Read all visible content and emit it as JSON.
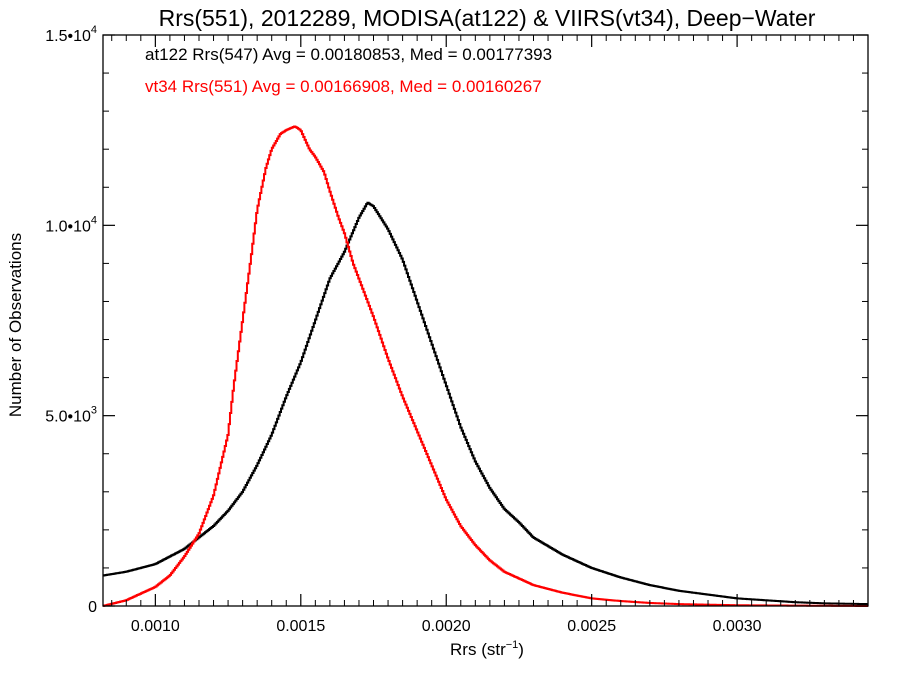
{
  "chart_data": {
    "type": "line",
    "title": "Rrs(551), 2012289, MODISA(at122) & VIIRS(vt34), Deep−Water",
    "xlabel": "Rrs (str⁻¹)",
    "ylabel": "Number of Observations",
    "xlim": [
      0.00082,
      0.00345
    ],
    "ylim": [
      0,
      15000
    ],
    "grid": false,
    "x_tick_values": [
      0.001,
      0.0015,
      0.002,
      0.0025,
      0.003
    ],
    "x_tick_labels": [
      "0.0010",
      "0.0015",
      "0.0020",
      "0.0025",
      "0.0030"
    ],
    "y_tick_values": [
      0,
      5000,
      10000,
      15000
    ],
    "y_tick_labels": [
      {
        "mant": "0",
        "exp": ""
      },
      {
        "mant": "5.0•10",
        "exp": "3"
      },
      {
        "mant": "1.0•10",
        "exp": "4"
      },
      {
        "mant": "1.5•10",
        "exp": "4"
      }
    ],
    "annotations": [
      {
        "text": "at122 Rrs(547) Avg = 0.00180853, Med = 0.00177393",
        "color": "#000000"
      },
      {
        "text": "vt34 Rrs(551) Avg = 0.00166908, Med = 0.00160267",
        "color": "#ff0000"
      }
    ],
    "series": [
      {
        "color": "#000000",
        "style": "histogram-step",
        "x": [
          0.00082,
          0.0009,
          0.001,
          0.0011,
          0.00115,
          0.0012,
          0.00125,
          0.0013,
          0.00135,
          0.0014,
          0.00145,
          0.0015,
          0.00155,
          0.0016,
          0.00165,
          0.0017,
          0.00173,
          0.00175,
          0.0018,
          0.00185,
          0.0019,
          0.00195,
          0.002,
          0.00205,
          0.0021,
          0.00215,
          0.0022,
          0.00225,
          0.0023,
          0.0024,
          0.0025,
          0.0026,
          0.0027,
          0.0028,
          0.0029,
          0.003,
          0.0031,
          0.0032,
          0.0033,
          0.00345
        ],
        "y": [
          800,
          900,
          1100,
          1500,
          1800,
          2100,
          2500,
          3000,
          3700,
          4500,
          5500,
          6400,
          7500,
          8600,
          9300,
          10200,
          10600,
          10500,
          9900,
          9100,
          8000,
          6900,
          5800,
          4700,
          3800,
          3100,
          2550,
          2200,
          1800,
          1350,
          1000,
          750,
          550,
          400,
          300,
          200,
          150,
          100,
          70,
          50
        ]
      },
      {
        "color": "#ff0000",
        "style": "histogram-step",
        "x": [
          0.00082,
          0.0009,
          0.001,
          0.00105,
          0.0011,
          0.00115,
          0.0012,
          0.00125,
          0.00127,
          0.0013,
          0.00133,
          0.00135,
          0.00138,
          0.0014,
          0.00143,
          0.00145,
          0.00148,
          0.0015,
          0.00153,
          0.00155,
          0.00158,
          0.0016,
          0.00163,
          0.00165,
          0.00168,
          0.0017,
          0.00175,
          0.0018,
          0.00185,
          0.0019,
          0.00195,
          0.002,
          0.00205,
          0.0021,
          0.00215,
          0.0022,
          0.0023,
          0.0024,
          0.0025,
          0.0026,
          0.0027,
          0.0028,
          0.003,
          0.0032,
          0.00345
        ],
        "y": [
          0,
          150,
          500,
          800,
          1300,
          1900,
          2900,
          4500,
          5800,
          7500,
          9200,
          10400,
          11500,
          12000,
          12400,
          12500,
          12600,
          12500,
          12000,
          11800,
          11400,
          10900,
          10200,
          9800,
          9000,
          8600,
          7600,
          6500,
          5500,
          4600,
          3700,
          2800,
          2100,
          1600,
          1200,
          900,
          550,
          350,
          200,
          130,
          80,
          50,
          20,
          10,
          0
        ]
      }
    ]
  }
}
